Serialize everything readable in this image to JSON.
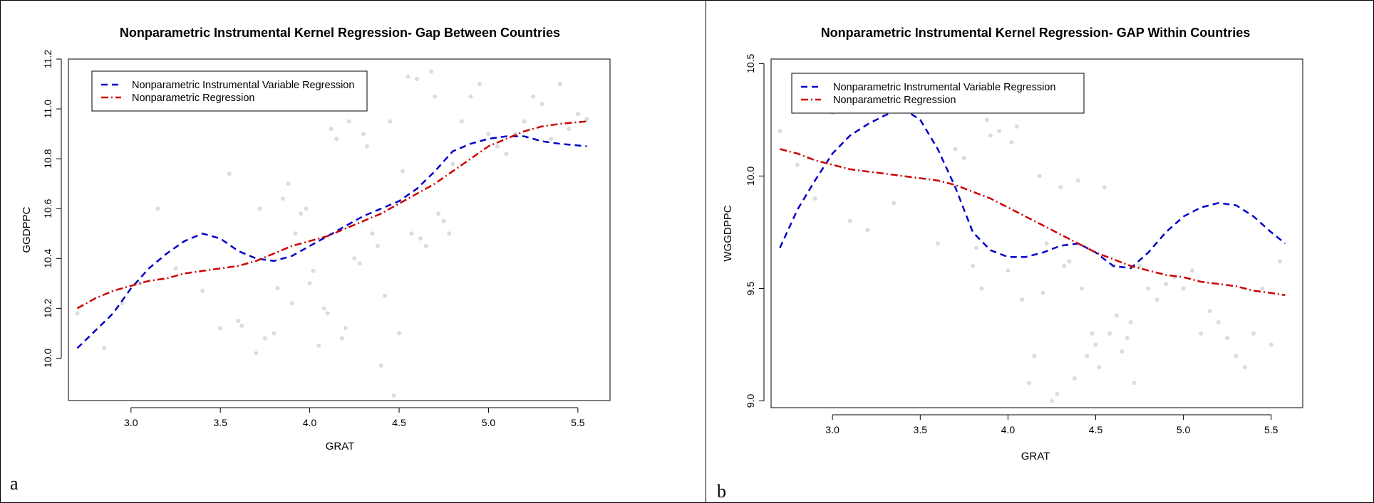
{
  "figure": {
    "colors": {
      "scatter": "#dcdcdc",
      "iv_line": "#0000cc",
      "np_line": "#cc0000",
      "border": "#000000"
    }
  },
  "chart_data": [
    {
      "panel_label": "a",
      "type": "line",
      "title": "Nonparametric Instrumental Kernel Regression- Gap Between Countries",
      "xlabel": "GRAT",
      "ylabel": "GGDPPC",
      "xlim": [
        2.65,
        5.68
      ],
      "ylim": [
        9.83,
        11.2
      ],
      "xticks": [
        "3.0",
        "3.5",
        "4.0",
        "4.5",
        "5.0",
        "5.5"
      ],
      "yticks": [
        "10.0",
        "10.2",
        "10.4",
        "10.6",
        "10.8",
        "11.0",
        "11.2"
      ],
      "legend": [
        "Nonparametric Instrumental Variable Regression",
        "Nonparametric Regression"
      ],
      "legend_position": "top-left",
      "series": [
        {
          "name": "Nonparametric Instrumental Variable Regression",
          "style": "dashed",
          "color": "#0000cc",
          "points": [
            [
              2.7,
              10.04
            ],
            [
              2.9,
              10.18
            ],
            [
              3.0,
              10.28
            ],
            [
              3.1,
              10.36
            ],
            [
              3.2,
              10.42
            ],
            [
              3.3,
              10.47
            ],
            [
              3.4,
              10.5
            ],
            [
              3.5,
              10.48
            ],
            [
              3.6,
              10.43
            ],
            [
              3.7,
              10.4
            ],
            [
              3.8,
              10.39
            ],
            [
              3.9,
              10.41
            ],
            [
              4.0,
              10.45
            ],
            [
              4.1,
              10.49
            ],
            [
              4.2,
              10.53
            ],
            [
              4.3,
              10.57
            ],
            [
              4.4,
              10.6
            ],
            [
              4.5,
              10.63
            ],
            [
              4.6,
              10.68
            ],
            [
              4.7,
              10.75
            ],
            [
              4.8,
              10.83
            ],
            [
              4.9,
              10.86
            ],
            [
              5.0,
              10.88
            ],
            [
              5.1,
              10.89
            ],
            [
              5.2,
              10.89
            ],
            [
              5.3,
              10.87
            ],
            [
              5.4,
              10.86
            ],
            [
              5.55,
              10.85
            ]
          ]
        },
        {
          "name": "Nonparametric Regression",
          "style": "dotdash",
          "color": "#cc0000",
          "points": [
            [
              2.7,
              10.2
            ],
            [
              2.8,
              10.24
            ],
            [
              2.9,
              10.27
            ],
            [
              3.0,
              10.29
            ],
            [
              3.1,
              10.31
            ],
            [
              3.2,
              10.32
            ],
            [
              3.3,
              10.34
            ],
            [
              3.4,
              10.35
            ],
            [
              3.5,
              10.36
            ],
            [
              3.6,
              10.37
            ],
            [
              3.7,
              10.39
            ],
            [
              3.8,
              10.42
            ],
            [
              3.9,
              10.45
            ],
            [
              4.0,
              10.47
            ],
            [
              4.1,
              10.49
            ],
            [
              4.2,
              10.52
            ],
            [
              4.3,
              10.55
            ],
            [
              4.4,
              10.58
            ],
            [
              4.5,
              10.62
            ],
            [
              4.6,
              10.66
            ],
            [
              4.7,
              10.7
            ],
            [
              4.8,
              10.75
            ],
            [
              4.9,
              10.8
            ],
            [
              5.0,
              10.85
            ],
            [
              5.1,
              10.88
            ],
            [
              5.2,
              10.91
            ],
            [
              5.3,
              10.93
            ],
            [
              5.4,
              10.94
            ],
            [
              5.55,
              10.95
            ]
          ]
        }
      ],
      "scatter": [
        [
          2.7,
          10.18
        ],
        [
          2.85,
          10.04
        ],
        [
          2.95,
          10.22
        ],
        [
          3.05,
          10.3
        ],
        [
          3.15,
          10.6
        ],
        [
          3.25,
          10.36
        ],
        [
          3.4,
          10.27
        ],
        [
          3.5,
          10.12
        ],
        [
          3.55,
          10.74
        ],
        [
          3.6,
          10.15
        ],
        [
          3.62,
          10.13
        ],
        [
          3.7,
          10.02
        ],
        [
          3.72,
          10.6
        ],
        [
          3.75,
          10.08
        ],
        [
          3.8,
          10.1
        ],
        [
          3.82,
          10.28
        ],
        [
          3.85,
          10.64
        ],
        [
          3.88,
          10.7
        ],
        [
          3.9,
          10.22
        ],
        [
          3.92,
          10.5
        ],
        [
          3.95,
          10.58
        ],
        [
          3.98,
          10.6
        ],
        [
          4.0,
          10.3
        ],
        [
          4.02,
          10.35
        ],
        [
          4.05,
          10.05
        ],
        [
          4.08,
          10.2
        ],
        [
          4.1,
          10.18
        ],
        [
          4.12,
          10.92
        ],
        [
          4.15,
          10.88
        ],
        [
          4.18,
          10.08
        ],
        [
          4.2,
          10.12
        ],
        [
          4.22,
          10.95
        ],
        [
          4.25,
          10.4
        ],
        [
          4.28,
          10.38
        ],
        [
          4.3,
          10.9
        ],
        [
          4.32,
          10.85
        ],
        [
          4.35,
          10.5
        ],
        [
          4.38,
          10.45
        ],
        [
          4.4,
          9.97
        ],
        [
          4.42,
          10.25
        ],
        [
          4.45,
          10.95
        ],
        [
          4.47,
          9.85
        ],
        [
          4.5,
          10.1
        ],
        [
          4.52,
          10.75
        ],
        [
          4.55,
          11.13
        ],
        [
          4.57,
          10.5
        ],
        [
          4.6,
          11.12
        ],
        [
          4.62,
          10.48
        ],
        [
          4.65,
          10.45
        ],
        [
          4.68,
          11.15
        ],
        [
          4.7,
          11.05
        ],
        [
          4.72,
          10.58
        ],
        [
          4.75,
          10.55
        ],
        [
          4.78,
          10.5
        ],
        [
          4.8,
          10.78
        ],
        [
          4.85,
          10.95
        ],
        [
          4.9,
          11.05
        ],
        [
          4.95,
          11.1
        ],
        [
          5.0,
          10.9
        ],
        [
          5.05,
          10.85
        ],
        [
          5.1,
          10.82
        ],
        [
          5.15,
          10.9
        ],
        [
          5.2,
          10.95
        ],
        [
          5.25,
          11.05
        ],
        [
          5.3,
          11.02
        ],
        [
          5.35,
          10.88
        ],
        [
          5.4,
          11.1
        ],
        [
          5.45,
          10.92
        ],
        [
          5.5,
          10.98
        ],
        [
          5.55,
          10.96
        ]
      ]
    },
    {
      "panel_label": "b",
      "type": "line",
      "title": "Nonparametric Instrumental Kernel Regression- GAP Within Countries",
      "xlabel": "GRAT",
      "ylabel": "WGGDPPC",
      "xlim": [
        2.65,
        5.68
      ],
      "ylim": [
        8.97,
        10.52
      ],
      "xticks": [
        "3.0",
        "3.5",
        "4.0",
        "4.5",
        "5.0",
        "5.5"
      ],
      "yticks": [
        "9.0",
        "9.5",
        "10.0",
        "10.5"
      ],
      "legend": [
        "Nonparametric Instrumental Variable Regression",
        "Nonparametric Regression"
      ],
      "legend_position": "top-left",
      "series": [
        {
          "name": "Nonparametric Instrumental Variable Regression",
          "style": "dashed",
          "color": "#0000cc",
          "points": [
            [
              2.7,
              9.68
            ],
            [
              2.8,
              9.85
            ],
            [
              2.9,
              9.98
            ],
            [
              3.0,
              10.1
            ],
            [
              3.1,
              10.18
            ],
            [
              3.2,
              10.23
            ],
            [
              3.3,
              10.27
            ],
            [
              3.4,
              10.3
            ],
            [
              3.5,
              10.25
            ],
            [
              3.6,
              10.12
            ],
            [
              3.7,
              9.95
            ],
            [
              3.8,
              9.75
            ],
            [
              3.9,
              9.67
            ],
            [
              4.0,
              9.64
            ],
            [
              4.1,
              9.64
            ],
            [
              4.2,
              9.66
            ],
            [
              4.3,
              9.69
            ],
            [
              4.4,
              9.7
            ],
            [
              4.5,
              9.66
            ],
            [
              4.6,
              9.6
            ],
            [
              4.7,
              9.59
            ],
            [
              4.8,
              9.66
            ],
            [
              4.9,
              9.75
            ],
            [
              5.0,
              9.82
            ],
            [
              5.1,
              9.86
            ],
            [
              5.2,
              9.88
            ],
            [
              5.3,
              9.87
            ],
            [
              5.4,
              9.82
            ],
            [
              5.5,
              9.75
            ],
            [
              5.58,
              9.7
            ]
          ]
        },
        {
          "name": "Nonparametric Regression",
          "style": "dotdash",
          "color": "#cc0000",
          "points": [
            [
              2.7,
              10.12
            ],
            [
              2.8,
              10.1
            ],
            [
              2.9,
              10.07
            ],
            [
              3.0,
              10.05
            ],
            [
              3.1,
              10.03
            ],
            [
              3.2,
              10.02
            ],
            [
              3.3,
              10.01
            ],
            [
              3.4,
              10.0
            ],
            [
              3.5,
              9.99
            ],
            [
              3.6,
              9.98
            ],
            [
              3.7,
              9.96
            ],
            [
              3.8,
              9.93
            ],
            [
              3.9,
              9.9
            ],
            [
              4.0,
              9.86
            ],
            [
              4.1,
              9.82
            ],
            [
              4.2,
              9.78
            ],
            [
              4.3,
              9.74
            ],
            [
              4.4,
              9.7
            ],
            [
              4.5,
              9.66
            ],
            [
              4.6,
              9.63
            ],
            [
              4.7,
              9.6
            ],
            [
              4.8,
              9.58
            ],
            [
              4.9,
              9.56
            ],
            [
              5.0,
              9.55
            ],
            [
              5.1,
              9.53
            ],
            [
              5.2,
              9.52
            ],
            [
              5.3,
              9.51
            ],
            [
              5.4,
              9.49
            ],
            [
              5.5,
              9.48
            ],
            [
              5.58,
              9.47
            ]
          ]
        }
      ],
      "scatter": [
        [
          2.7,
          10.2
        ],
        [
          2.8,
          10.05
        ],
        [
          2.9,
          9.9
        ],
        [
          3.0,
          10.28
        ],
        [
          3.1,
          9.8
        ],
        [
          3.2,
          9.76
        ],
        [
          3.35,
          9.88
        ],
        [
          3.45,
          10.35
        ],
        [
          3.55,
          10.3
        ],
        [
          3.6,
          9.7
        ],
        [
          3.7,
          10.12
        ],
        [
          3.75,
          10.08
        ],
        [
          3.8,
          9.6
        ],
        [
          3.82,
          9.68
        ],
        [
          3.85,
          9.5
        ],
        [
          3.88,
          10.25
        ],
        [
          3.9,
          10.18
        ],
        [
          3.95,
          10.2
        ],
        [
          4.0,
          9.58
        ],
        [
          4.02,
          10.15
        ],
        [
          4.05,
          10.22
        ],
        [
          4.08,
          9.45
        ],
        [
          4.1,
          10.3
        ],
        [
          4.12,
          9.08
        ],
        [
          4.15,
          9.2
        ],
        [
          4.18,
          10.0
        ],
        [
          4.2,
          9.48
        ],
        [
          4.22,
          9.7
        ],
        [
          4.25,
          9.0
        ],
        [
          4.28,
          9.03
        ],
        [
          4.3,
          9.95
        ],
        [
          4.32,
          9.6
        ],
        [
          4.35,
          9.62
        ],
        [
          4.38,
          9.1
        ],
        [
          4.4,
          9.98
        ],
        [
          4.42,
          9.5
        ],
        [
          4.45,
          9.2
        ],
        [
          4.48,
          9.3
        ],
        [
          4.5,
          9.25
        ],
        [
          4.52,
          9.15
        ],
        [
          4.55,
          9.95
        ],
        [
          4.58,
          9.3
        ],
        [
          4.6,
          9.6
        ],
        [
          4.62,
          9.38
        ],
        [
          4.65,
          9.22
        ],
        [
          4.68,
          9.28
        ],
        [
          4.7,
          9.35
        ],
        [
          4.72,
          9.08
        ],
        [
          4.75,
          9.6
        ],
        [
          4.8,
          9.5
        ],
        [
          4.85,
          9.45
        ],
        [
          4.9,
          9.52
        ],
        [
          4.95,
          9.55
        ],
        [
          5.0,
          9.5
        ],
        [
          5.05,
          9.58
        ],
        [
          5.1,
          9.3
        ],
        [
          5.15,
          9.4
        ],
        [
          5.2,
          9.35
        ],
        [
          5.25,
          9.28
        ],
        [
          5.3,
          9.2
        ],
        [
          5.35,
          9.15
        ],
        [
          5.4,
          9.3
        ],
        [
          5.45,
          9.5
        ],
        [
          5.5,
          9.25
        ],
        [
          5.55,
          9.62
        ]
      ]
    }
  ]
}
